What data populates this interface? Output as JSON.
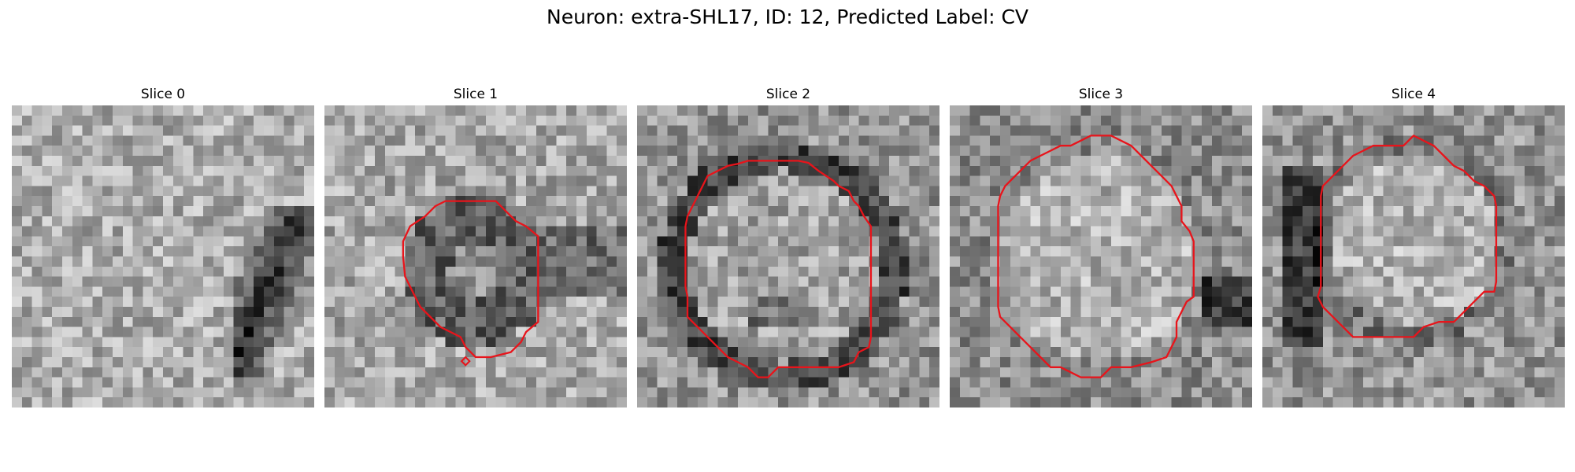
{
  "title": "Neuron: extra-SHL17, ID: 12, Predicted Label: CV",
  "colors": {
    "contour": "#e8141b",
    "background": "#ffffff"
  },
  "panels": [
    {
      "label": "Slice 0",
      "has_contour": false
    },
    {
      "label": "Slice 1",
      "has_contour": true
    },
    {
      "label": "Slice 2",
      "has_contour": true
    },
    {
      "label": "Slice 3",
      "has_contour": true
    },
    {
      "label": "Slice 4",
      "has_contour": true
    }
  ]
}
